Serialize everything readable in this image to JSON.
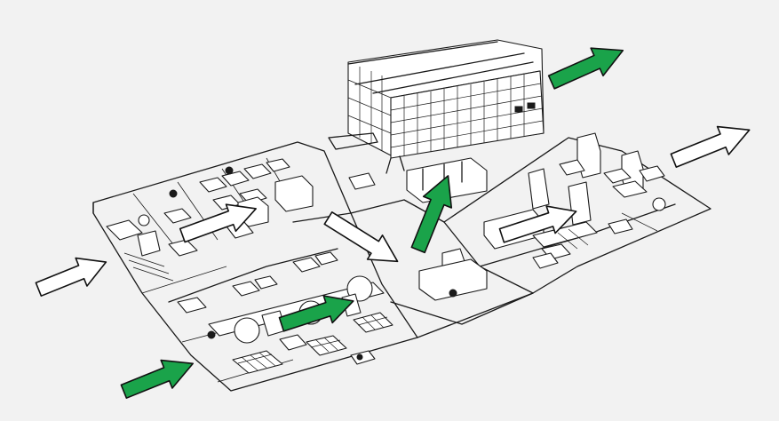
{
  "colors": {
    "background": "#f2f2f2",
    "line": "#1a1a1a",
    "arrow_outline": "#111111",
    "arrow_green": "#1aa34a",
    "arrow_white": "#ffffff"
  },
  "arrows": [
    {
      "id": "white-inbound-left",
      "fill": "white"
    },
    {
      "id": "green-inbound-bottom-left",
      "fill": "green"
    },
    {
      "id": "white-left-floor",
      "fill": "white"
    },
    {
      "id": "green-machining-line",
      "fill": "green"
    },
    {
      "id": "white-to-center",
      "fill": "white"
    },
    {
      "id": "green-to-warehouse",
      "fill": "green"
    },
    {
      "id": "white-right-floor",
      "fill": "white"
    },
    {
      "id": "green-outbound-top",
      "fill": "green"
    },
    {
      "id": "white-outbound-right",
      "fill": "white"
    }
  ]
}
